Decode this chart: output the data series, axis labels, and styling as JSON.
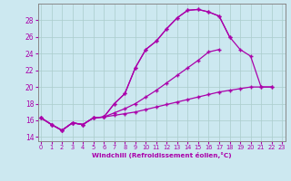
{
  "xlabel": "Windchill (Refroidissement éolien,°C)",
  "background_color": "#cce8f0",
  "grid_color": "#aacccc",
  "line_color": "#aa00aa",
  "x": [
    0,
    1,
    2,
    3,
    4,
    5,
    6,
    7,
    8,
    9,
    10,
    11,
    12,
    13,
    14,
    15,
    16,
    17,
    18,
    19,
    20,
    21,
    22,
    23
  ],
  "line1_y": [
    16.3,
    15.5,
    14.8,
    15.7,
    15.5,
    16.3,
    16.4,
    18.0,
    19.2,
    22.3,
    24.5,
    25.5,
    27.0,
    28.3,
    29.2,
    29.3,
    29.0,
    28.5,
    26.0,
    null,
    null,
    null,
    null,
    null
  ],
  "line2_y": [
    16.3,
    15.5,
    14.8,
    15.7,
    15.5,
    16.3,
    16.4,
    18.0,
    19.2,
    22.3,
    24.5,
    25.5,
    27.0,
    28.3,
    29.2,
    29.3,
    29.0,
    28.5,
    26.0,
    24.5,
    23.7,
    20.0,
    20.0,
    null
  ],
  "line3_y": [
    16.3,
    15.5,
    14.8,
    15.7,
    15.5,
    16.3,
    16.4,
    16.9,
    17.4,
    18.0,
    18.8,
    19.6,
    20.5,
    21.4,
    22.3,
    23.2,
    24.2,
    24.5,
    null,
    null,
    null,
    null,
    null,
    null
  ],
  "line4_y": [
    16.3,
    15.5,
    14.8,
    15.7,
    15.5,
    16.3,
    16.4,
    16.6,
    16.8,
    17.0,
    17.3,
    17.6,
    17.9,
    18.2,
    18.5,
    18.8,
    19.1,
    19.4,
    19.6,
    19.8,
    20.0,
    20.0,
    20.0,
    null
  ],
  "ylim": [
    13.5,
    30.0
  ],
  "yticks": [
    14,
    16,
    18,
    20,
    22,
    24,
    26,
    28
  ],
  "xlim": [
    -0.3,
    23.3
  ],
  "xticks": [
    0,
    1,
    2,
    3,
    4,
    5,
    6,
    7,
    8,
    9,
    10,
    11,
    12,
    13,
    14,
    15,
    16,
    17,
    18,
    19,
    20,
    21,
    22,
    23
  ]
}
